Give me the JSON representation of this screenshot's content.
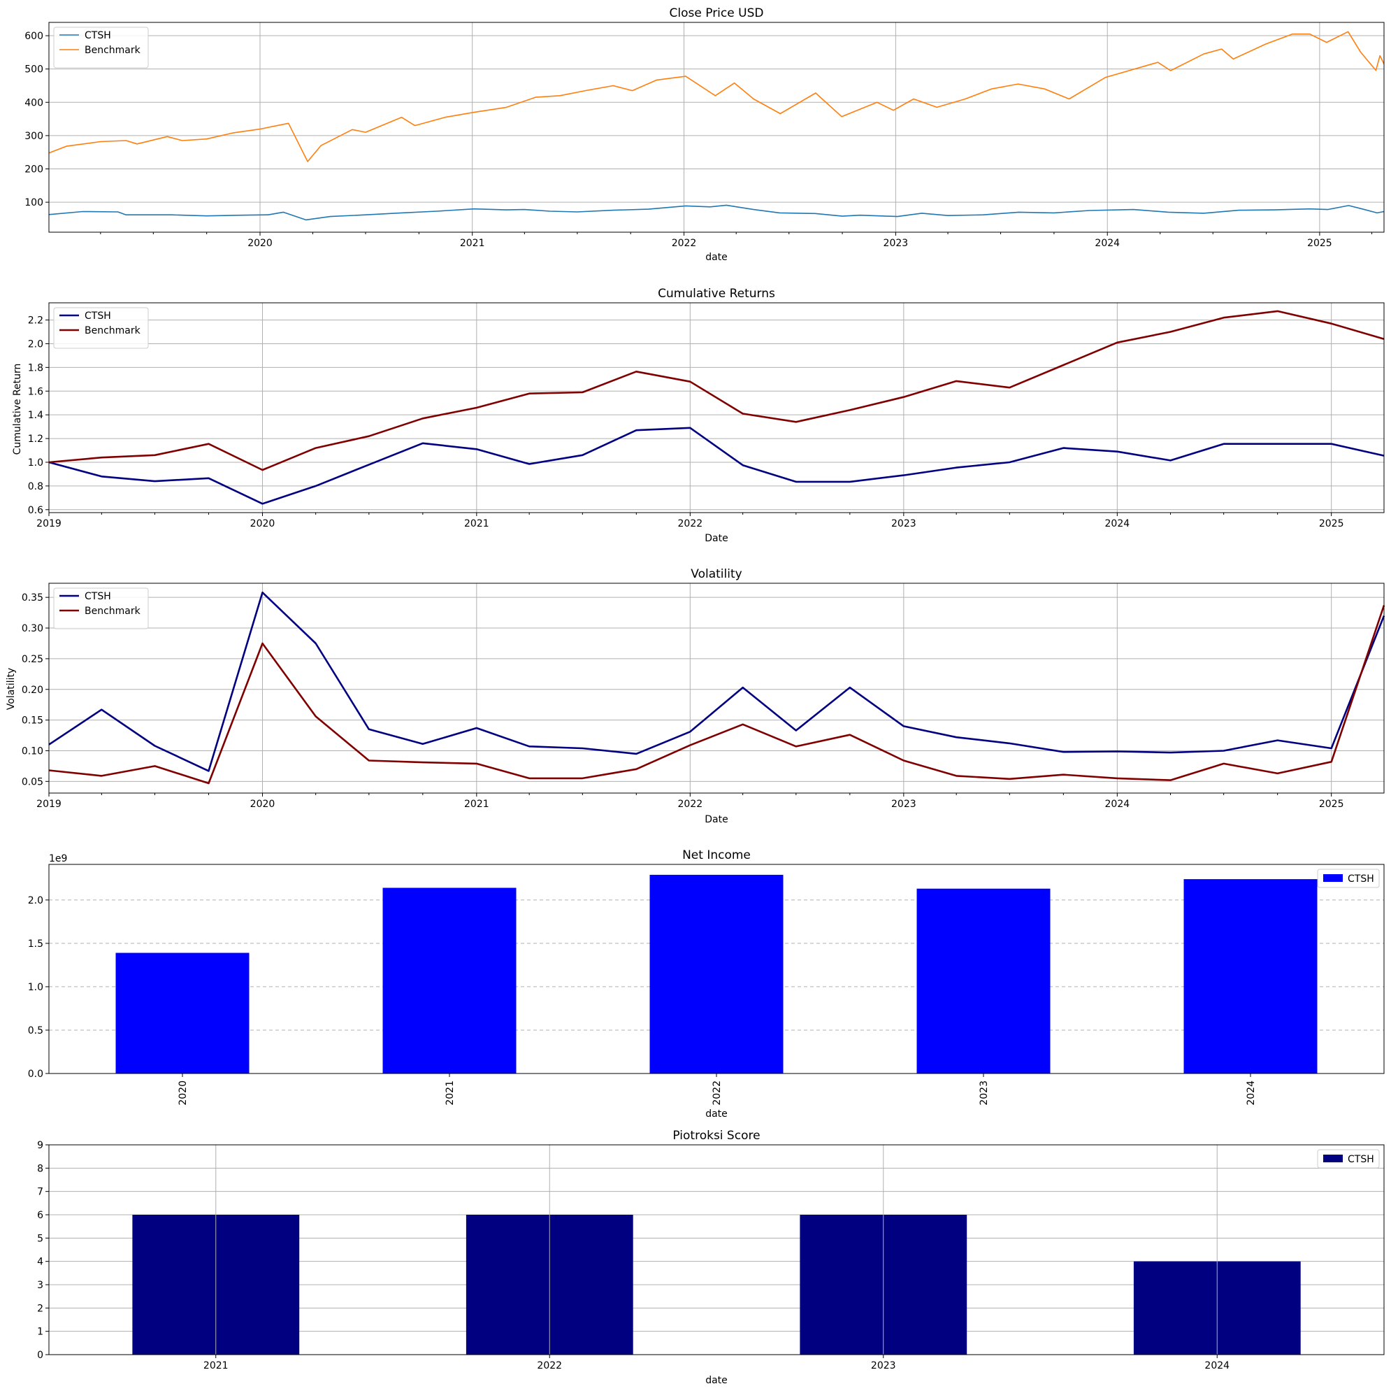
{
  "chart_data": [
    {
      "type": "line",
      "title": "Close Price USD",
      "xlabel": "date",
      "ylabel": "",
      "xlim": [
        "2019-01-02",
        "2025-04-22"
      ],
      "ylim": [
        10,
        640
      ],
      "yticks": [
        100,
        200,
        300,
        400,
        500,
        600
      ],
      "xticks": [
        "2020",
        "2021",
        "2022",
        "2023",
        "2024",
        "2025"
      ],
      "grid": true,
      "legend": "top-left",
      "series": [
        {
          "name": "CTSH",
          "color": "#1f77b4",
          "points": [
            [
              "2019-01-02",
              63
            ],
            [
              "2019-03-01",
              72
            ],
            [
              "2019-05-01",
              71
            ],
            [
              "2019-05-15",
              62
            ],
            [
              "2019-08-01",
              62
            ],
            [
              "2019-10-01",
              59
            ],
            [
              "2019-12-01",
              61
            ],
            [
              "2020-01-15",
              62
            ],
            [
              "2020-02-10",
              70
            ],
            [
              "2020-03-20",
              47
            ],
            [
              "2020-05-01",
              57
            ],
            [
              "2020-07-01",
              62
            ],
            [
              "2020-09-01",
              68
            ],
            [
              "2020-11-01",
              73
            ],
            [
              "2021-01-04",
              80
            ],
            [
              "2021-03-01",
              77
            ],
            [
              "2021-04-01",
              78
            ],
            [
              "2021-05-15",
              73
            ],
            [
              "2021-07-01",
              71
            ],
            [
              "2021-09-01",
              76
            ],
            [
              "2021-11-01",
              79
            ],
            [
              "2022-01-04",
              89
            ],
            [
              "2022-02-15",
              86
            ],
            [
              "2022-03-15",
              91
            ],
            [
              "2022-05-01",
              78
            ],
            [
              "2022-06-15",
              68
            ],
            [
              "2022-08-15",
              66
            ],
            [
              "2022-10-01",
              58
            ],
            [
              "2022-11-01",
              61
            ],
            [
              "2023-01-04",
              57
            ],
            [
              "2023-02-15",
              67
            ],
            [
              "2023-04-01",
              60
            ],
            [
              "2023-06-01",
              62
            ],
            [
              "2023-08-01",
              70
            ],
            [
              "2023-10-01",
              68
            ],
            [
              "2023-12-01",
              75
            ],
            [
              "2024-02-15",
              78
            ],
            [
              "2024-04-15",
              70
            ],
            [
              "2024-06-15",
              67
            ],
            [
              "2024-08-15",
              76
            ],
            [
              "2024-10-15",
              77
            ],
            [
              "2024-12-15",
              80
            ],
            [
              "2025-01-15",
              78
            ],
            [
              "2025-02-20",
              90
            ],
            [
              "2025-03-15",
              80
            ],
            [
              "2025-04-10",
              68
            ],
            [
              "2025-04-22",
              72
            ]
          ]
        },
        {
          "name": "Benchmark",
          "color": "#ff7f0e",
          "points": [
            [
              "2019-01-02",
              248
            ],
            [
              "2019-02-01",
              268
            ],
            [
              "2019-04-01",
              282
            ],
            [
              "2019-05-15",
              285
            ],
            [
              "2019-06-03",
              275
            ],
            [
              "2019-07-25",
              297
            ],
            [
              "2019-08-20",
              285
            ],
            [
              "2019-10-01",
              290
            ],
            [
              "2019-11-15",
              308
            ],
            [
              "2020-01-02",
              320
            ],
            [
              "2020-02-19",
              337
            ],
            [
              "2020-03-23",
              222
            ],
            [
              "2020-04-15",
              270
            ],
            [
              "2020-06-08",
              318
            ],
            [
              "2020-07-01",
              310
            ],
            [
              "2020-09-01",
              355
            ],
            [
              "2020-09-24",
              330
            ],
            [
              "2020-11-15",
              355
            ],
            [
              "2021-01-04",
              370
            ],
            [
              "2021-03-01",
              385
            ],
            [
              "2021-04-20",
              415
            ],
            [
              "2021-06-01",
              420
            ],
            [
              "2021-07-15",
              435
            ],
            [
              "2021-09-01",
              450
            ],
            [
              "2021-10-04",
              435
            ],
            [
              "2021-11-15",
              467
            ],
            [
              "2022-01-04",
              478
            ],
            [
              "2022-02-24",
              420
            ],
            [
              "2022-03-29",
              458
            ],
            [
              "2022-05-01",
              410
            ],
            [
              "2022-06-16",
              366
            ],
            [
              "2022-08-16",
              428
            ],
            [
              "2022-09-30",
              357
            ],
            [
              "2022-11-30",
              400
            ],
            [
              "2022-12-28",
              376
            ],
            [
              "2023-02-01",
              410
            ],
            [
              "2023-03-13",
              385
            ],
            [
              "2023-05-01",
              410
            ],
            [
              "2023-06-15",
              440
            ],
            [
              "2023-07-31",
              455
            ],
            [
              "2023-09-15",
              440
            ],
            [
              "2023-10-27",
              410
            ],
            [
              "2023-12-29",
              475
            ],
            [
              "2024-03-28",
              520
            ],
            [
              "2024-04-19",
              495
            ],
            [
              "2024-06-15",
              545
            ],
            [
              "2024-07-16",
              560
            ],
            [
              "2024-08-05",
              530
            ],
            [
              "2024-09-30",
              575
            ],
            [
              "2024-11-15",
              605
            ],
            [
              "2024-12-15",
              605
            ],
            [
              "2025-01-13",
              580
            ],
            [
              "2025-02-19",
              612
            ],
            [
              "2025-03-13",
              550
            ],
            [
              "2025-04-08",
              496
            ],
            [
              "2025-04-15",
              540
            ],
            [
              "2025-04-22",
              515
            ]
          ]
        }
      ]
    },
    {
      "type": "line",
      "title": "Cumulative Returns",
      "xlabel": "Date",
      "ylabel": "Cumulative Return",
      "xlim": [
        "2019-01-01",
        "2025-04-01"
      ],
      "ylim": [
        0.575,
        2.345
      ],
      "yticks": [
        "0.6",
        "0.8",
        "1.0",
        "1.2",
        "1.4",
        "1.6",
        "1.8",
        "2.0",
        "2.2"
      ],
      "xticks": [
        "2019",
        "2020",
        "2021",
        "2022",
        "2023",
        "2024",
        "2025"
      ],
      "grid": true,
      "legend": "top-left",
      "x": [
        "2019-01-01",
        "2019-04-01",
        "2019-07-01",
        "2019-10-01",
        "2020-01-01",
        "2020-04-01",
        "2020-07-01",
        "2020-10-01",
        "2021-01-01",
        "2021-04-01",
        "2021-07-01",
        "2021-10-01",
        "2022-01-01",
        "2022-04-01",
        "2022-07-01",
        "2022-10-01",
        "2023-01-01",
        "2023-04-01",
        "2023-07-01",
        "2023-10-01",
        "2024-01-01",
        "2024-04-01",
        "2024-07-01",
        "2024-10-01",
        "2025-01-01",
        "2025-04-01"
      ],
      "series": [
        {
          "name": "CTSH",
          "color": "#000080",
          "values": [
            1.0,
            0.88,
            0.84,
            0.865,
            0.65,
            0.8,
            0.98,
            1.16,
            1.11,
            0.985,
            1.06,
            1.27,
            1.29,
            0.975,
            0.835,
            0.835,
            0.89,
            0.955,
            1.0,
            1.12,
            1.09,
            1.015,
            1.155,
            1.155,
            1.155,
            1.055
          ]
        },
        {
          "name": "Benchmark",
          "color": "#800000",
          "values": [
            1.0,
            1.04,
            1.06,
            1.155,
            0.935,
            1.12,
            1.22,
            1.37,
            1.46,
            1.58,
            1.59,
            1.765,
            1.68,
            1.41,
            1.34,
            1.44,
            1.55,
            1.685,
            1.63,
            1.82,
            2.01,
            2.1,
            2.22,
            2.275,
            2.17,
            2.04
          ]
        }
      ]
    },
    {
      "type": "line",
      "title": "Volatility",
      "xlabel": "Date",
      "ylabel": "Volatility",
      "xlim": [
        "2019-01-01",
        "2025-04-01"
      ],
      "ylim": [
        0.031,
        0.373
      ],
      "yticks": [
        "0.05",
        "0.10",
        "0.15",
        "0.20",
        "0.25",
        "0.30",
        "0.35"
      ],
      "xticks": [
        "2019",
        "2020",
        "2021",
        "2022",
        "2023",
        "2024",
        "2025"
      ],
      "grid": true,
      "legend": "top-left",
      "x": [
        "2019-01-01",
        "2019-04-01",
        "2019-07-01",
        "2019-10-01",
        "2020-01-01",
        "2020-04-01",
        "2020-07-01",
        "2020-10-01",
        "2021-01-01",
        "2021-04-01",
        "2021-07-01",
        "2021-10-01",
        "2022-01-01",
        "2022-04-01",
        "2022-07-01",
        "2022-10-01",
        "2023-01-01",
        "2023-04-01",
        "2023-07-01",
        "2023-10-01",
        "2024-01-01",
        "2024-04-01",
        "2024-07-01",
        "2024-10-01",
        "2025-01-01",
        "2025-04-01"
      ],
      "series": [
        {
          "name": "CTSH",
          "color": "#000080",
          "values": [
            0.11,
            0.167,
            0.108,
            0.067,
            0.358,
            0.275,
            0.135,
            0.111,
            0.137,
            0.107,
            0.104,
            0.095,
            0.131,
            0.203,
            0.133,
            0.203,
            0.14,
            0.122,
            0.112,
            0.098,
            0.099,
            0.097,
            0.1,
            0.117,
            0.104,
            0.32
          ]
        },
        {
          "name": "Benchmark",
          "color": "#800000",
          "values": [
            0.068,
            0.059,
            0.075,
            0.047,
            0.275,
            0.156,
            0.084,
            0.081,
            0.079,
            0.055,
            0.055,
            0.07,
            0.109,
            0.143,
            0.107,
            0.126,
            0.084,
            0.059,
            0.054,
            0.061,
            0.055,
            0.052,
            0.079,
            0.063,
            0.082,
            0.337
          ]
        }
      ]
    },
    {
      "type": "bar",
      "title": "Net Income",
      "xlabel": "date",
      "ylabel": "",
      "offset_label": "1e9",
      "ylim": [
        0,
        2.41
      ],
      "yticks": [
        "0.0",
        "0.5",
        "1.0",
        "1.5",
        "2.0"
      ],
      "grid": "y-dashed",
      "legend": "top-right",
      "categories": [
        "2020",
        "2021",
        "2022",
        "2023",
        "2024"
      ],
      "series": [
        {
          "name": "CTSH",
          "color": "#0000ff",
          "values": [
            1.39,
            2.14,
            2.29,
            2.13,
            2.24
          ]
        }
      ]
    },
    {
      "type": "bar",
      "title": "Piotroksi Score",
      "xlabel": "date",
      "ylabel": "",
      "ylim": [
        0,
        9
      ],
      "yticks": [
        "0",
        "1",
        "2",
        "3",
        "4",
        "5",
        "6",
        "7",
        "8",
        "9"
      ],
      "grid": true,
      "legend": "top-right",
      "categories": [
        "2021",
        "2022",
        "2023",
        "2024"
      ],
      "series": [
        {
          "name": "CTSH",
          "color": "#000080",
          "values": [
            6,
            6,
            6,
            4
          ]
        }
      ]
    }
  ]
}
